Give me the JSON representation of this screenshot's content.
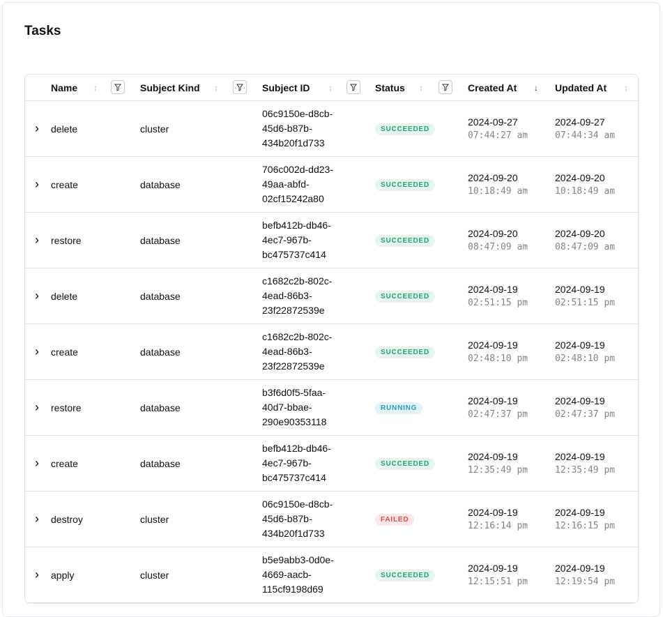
{
  "page": {
    "title": "Tasks"
  },
  "colors": {
    "succeeded_bg": "#e6f5ee",
    "succeeded_fg": "#1fa971",
    "running_bg": "#e3f2f7",
    "running_fg": "#2b9cc0",
    "failed_bg": "#fde8e8",
    "failed_fg": "#ef4444"
  },
  "table": {
    "headers": [
      {
        "label": "Name",
        "sort": "unsorted",
        "filter": true
      },
      {
        "label": "Subject Kind",
        "sort": "unsorted",
        "filter": true
      },
      {
        "label": "Subject ID",
        "sort": "unsorted",
        "filter": true
      },
      {
        "label": "Status",
        "sort": "unsorted",
        "filter": true
      },
      {
        "label": "Created At",
        "sort": "descending",
        "filter": false
      },
      {
        "label": "Updated At",
        "sort": "unsorted",
        "filter": false
      }
    ],
    "rows": [
      {
        "name": "delete",
        "kind": "cluster",
        "id": [
          "06c9150e-d8cb-",
          "45d6-b87b-",
          "434b20f1d733"
        ],
        "status": "SUCCEEDED",
        "created_date": "2024-09-27",
        "created_time": "07:44:27 am",
        "updated_date": "2024-09-27",
        "updated_time": "07:44:34 am"
      },
      {
        "name": "create",
        "kind": "database",
        "id": [
          "706c002d-dd23-",
          "49aa-abfd-",
          "02cf15242a80"
        ],
        "status": "SUCCEEDED",
        "created_date": "2024-09-20",
        "created_time": "10:18:49 am",
        "updated_date": "2024-09-20",
        "updated_time": "10:18:49 am"
      },
      {
        "name": "restore",
        "kind": "database",
        "id": [
          "befb412b-db46-",
          "4ec7-967b-",
          "bc475737c414"
        ],
        "status": "SUCCEEDED",
        "created_date": "2024-09-20",
        "created_time": "08:47:09 am",
        "updated_date": "2024-09-20",
        "updated_time": "08:47:09 am"
      },
      {
        "name": "delete",
        "kind": "database",
        "id": [
          "c1682c2b-802c-",
          "4ead-86b3-",
          "23f22872539e"
        ],
        "status": "SUCCEEDED",
        "created_date": "2024-09-19",
        "created_time": "02:51:15 pm",
        "updated_date": "2024-09-19",
        "updated_time": "02:51:15 pm"
      },
      {
        "name": "create",
        "kind": "database",
        "id": [
          "c1682c2b-802c-",
          "4ead-86b3-",
          "23f22872539e"
        ],
        "status": "SUCCEEDED",
        "created_date": "2024-09-19",
        "created_time": "02:48:10 pm",
        "updated_date": "2024-09-19",
        "updated_time": "02:48:10 pm"
      },
      {
        "name": "restore",
        "kind": "database",
        "id": [
          "b3f6d0f5-5faa-",
          "40d7-bbae-",
          "290e90353118"
        ],
        "status": "RUNNING",
        "created_date": "2024-09-19",
        "created_time": "02:47:37 pm",
        "updated_date": "2024-09-19",
        "updated_time": "02:47:37 pm"
      },
      {
        "name": "create",
        "kind": "database",
        "id": [
          "befb412b-db46-",
          "4ec7-967b-",
          "bc475737c414"
        ],
        "status": "SUCCEEDED",
        "created_date": "2024-09-19",
        "created_time": "12:35:49 pm",
        "updated_date": "2024-09-19",
        "updated_time": "12:35:49 pm"
      },
      {
        "name": "destroy",
        "kind": "cluster",
        "id": [
          "06c9150e-d8cb-",
          "45d6-b87b-",
          "434b20f1d733"
        ],
        "status": "FAILED",
        "created_date": "2024-09-19",
        "created_time": "12:16:14 pm",
        "updated_date": "2024-09-19",
        "updated_time": "12:16:15 pm"
      },
      {
        "name": "apply",
        "kind": "cluster",
        "id": [
          "b5e9abb3-0d0e-",
          "4669-aacb-",
          "115cf9198d69"
        ],
        "status": "SUCCEEDED",
        "created_date": "2024-09-19",
        "created_time": "12:15:51 pm",
        "updated_date": "2024-09-19",
        "updated_time": "12:19:54 pm"
      }
    ]
  }
}
